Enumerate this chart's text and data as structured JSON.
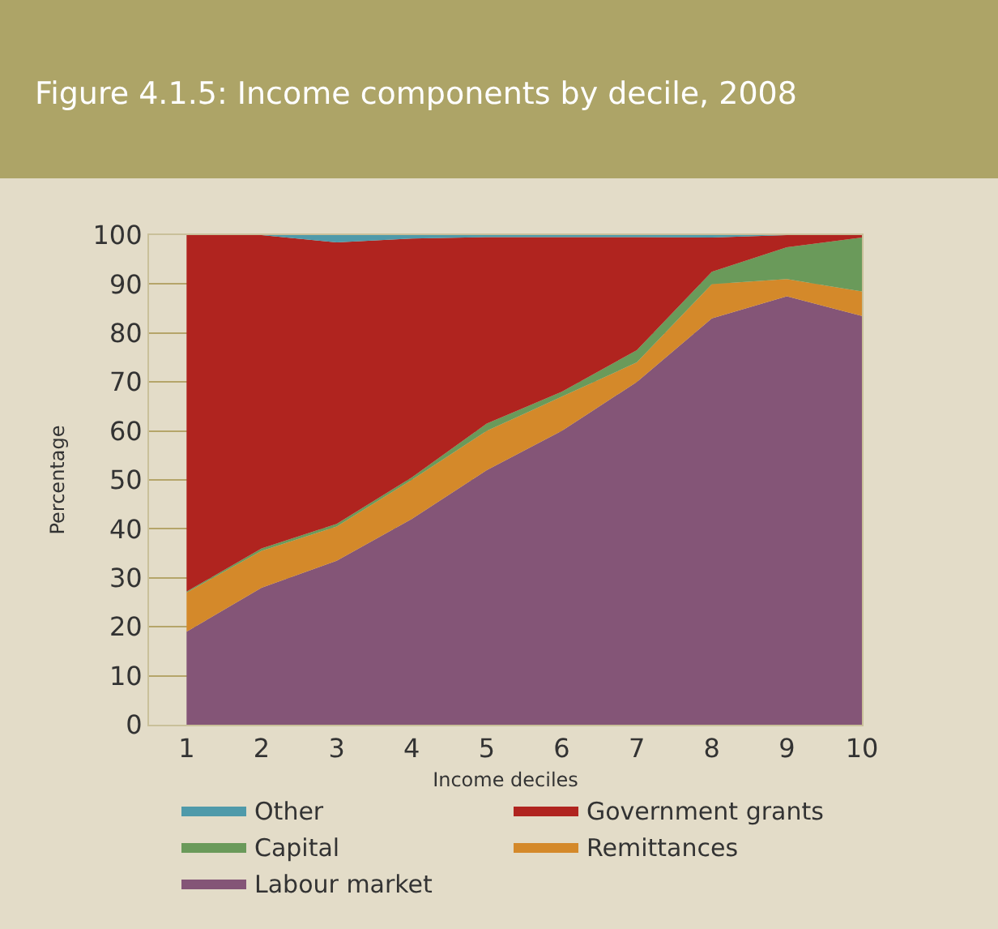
{
  "chart_data": {
    "type": "area",
    "stacked": true,
    "title": "Figure 4.1.5: Income components by decile, 2008",
    "xlabel": "Income deciles",
    "ylabel": "Percentage",
    "x": [
      1,
      2,
      3,
      4,
      5,
      6,
      7,
      8,
      9,
      10
    ],
    "xlim": [
      0.5,
      10
    ],
    "xticks": [
      1,
      2,
      3,
      4,
      5,
      6,
      7,
      8,
      9,
      10
    ],
    "ylim": [
      0,
      100
    ],
    "yticks": [
      0,
      10,
      20,
      30,
      40,
      50,
      60,
      70,
      80,
      90,
      100
    ],
    "grid": "y",
    "legend": "bottom",
    "series": [
      {
        "name": "Labour market",
        "color": "#845577",
        "values": [
          19,
          28,
          33.5,
          42,
          52,
          60,
          70,
          83,
          87.5,
          83.5
        ]
      },
      {
        "name": "Remittances",
        "color": "#d4892a",
        "values": [
          8,
          7.5,
          7,
          8,
          8,
          7,
          4,
          7,
          3.5,
          5
        ]
      },
      {
        "name": "Capital",
        "color": "#6a9a5a",
        "values": [
          0.2,
          0.5,
          0.5,
          0.5,
          1.5,
          1,
          2.5,
          2.5,
          6.5,
          11
        ]
      },
      {
        "name": "Government grants",
        "color": "#b0241f",
        "values": [
          72.8,
          64,
          57.5,
          48.8,
          38.1,
          31.6,
          23.1,
          7,
          2.5,
          0.5
        ]
      },
      {
        "name": "Other",
        "color": "#4f9aaa",
        "values": [
          0,
          0,
          1.5,
          0.7,
          0.4,
          0.4,
          0.4,
          0.5,
          0,
          0
        ]
      }
    ]
  }
}
